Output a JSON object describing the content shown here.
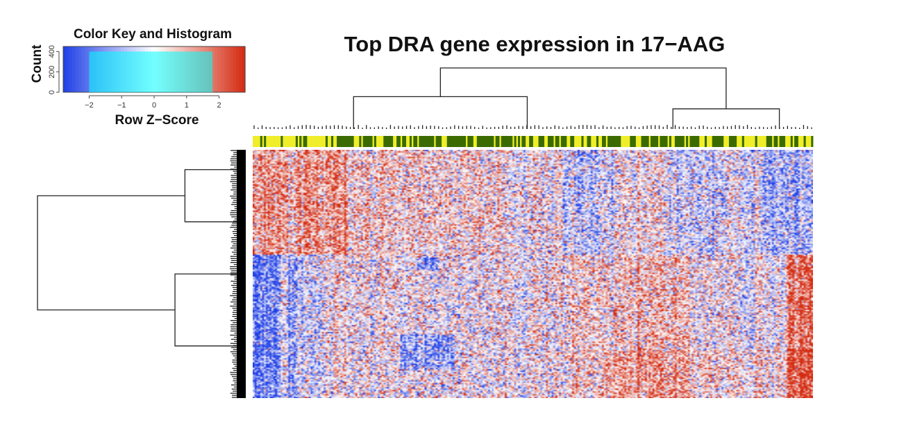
{
  "chart_data": {
    "type": "heatmap",
    "title": "Top DRA gene expression in 17−AAG",
    "color_key": {
      "title": "Color Key and Histogram",
      "xlabel": "Row Z−Score",
      "ylabel": "Count",
      "x_ticks": [
        "−2",
        "−1",
        "0",
        "1",
        "2"
      ],
      "x_tick_values": [
        -2,
        -1,
        0,
        1,
        2
      ],
      "y_ticks": [
        "0",
        "200",
        "400"
      ],
      "y_tick_values": [
        0,
        200,
        400
      ],
      "xlim": [
        -2.8,
        2.8
      ],
      "ylim": [
        0,
        450
      ],
      "histogram_color": "#00ffff",
      "histogram_plateau": [
        -2,
        1.8,
        400
      ]
    },
    "colors": {
      "low": "#1f3fe6",
      "mid": "#ffffff",
      "high": "#d42a10",
      "annotation_dark": "#3b6b00",
      "annotation_light": "#f0ee2a",
      "dendrogram": "#222222"
    },
    "row_dendrogram": true,
    "column_dendrogram": true,
    "column_annotation_bar": true
  }
}
